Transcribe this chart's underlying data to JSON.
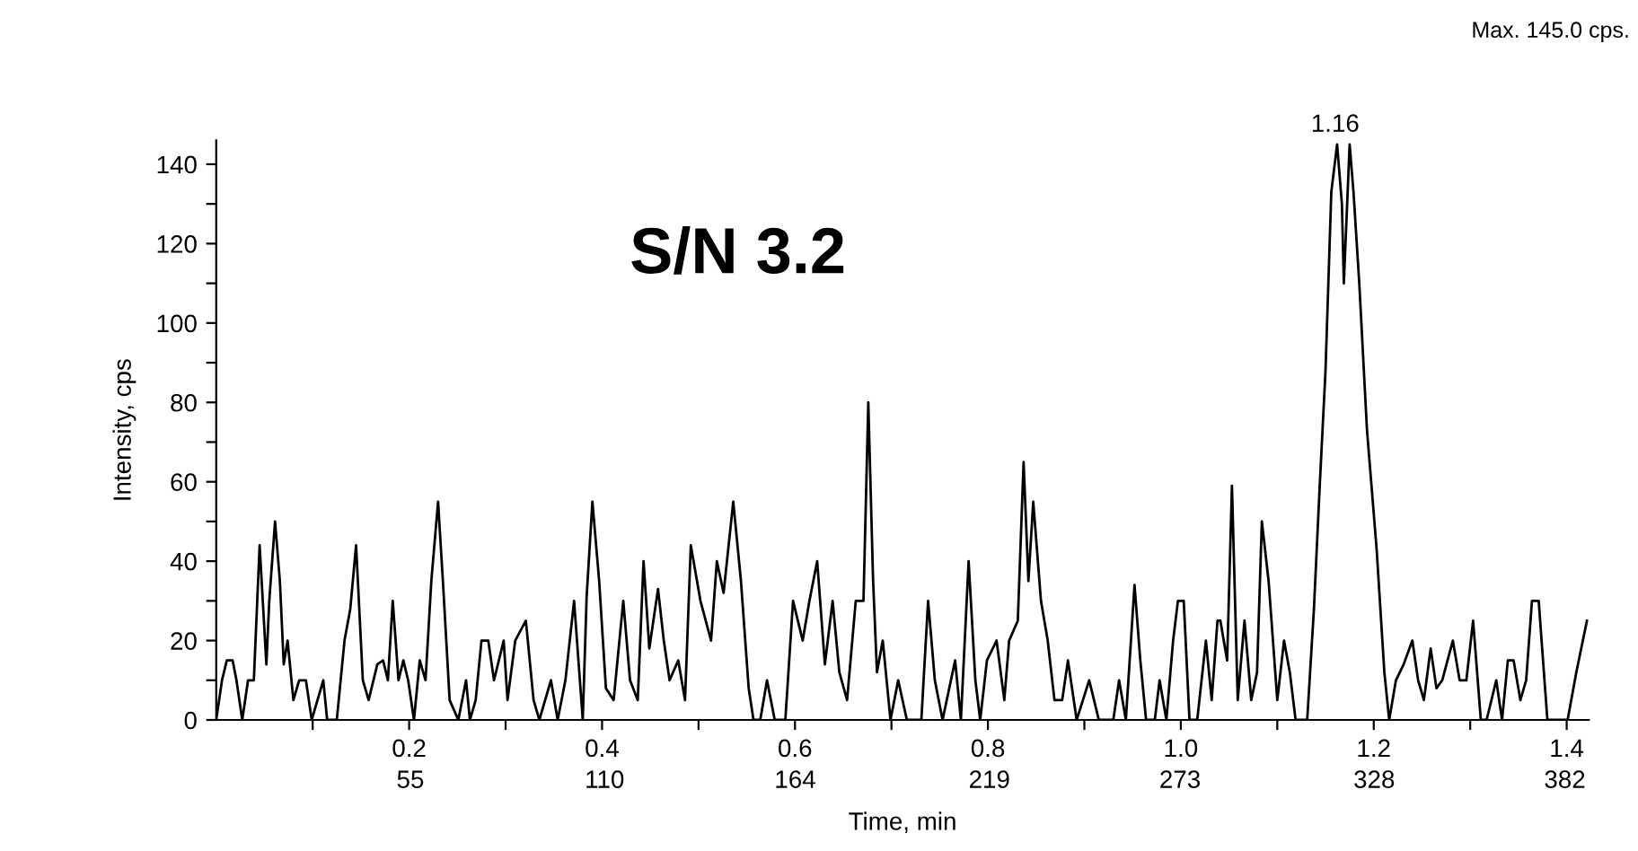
{
  "chart_data": {
    "type": "line",
    "xlabel": "Time, min",
    "ylabel": "Intensity, cps",
    "annotations": [
      "Max. 145.0 cps.",
      "S/N 3.2",
      {
        "text": "1.16",
        "x": 1.16,
        "y": 145
      }
    ],
    "xlim": [
      0,
      1.423
    ],
    "ylim": [
      0,
      146
    ],
    "xticks": [
      {
        "value": 0.1,
        "label": null
      },
      0.2,
      {
        "value": 0.3,
        "label": null
      },
      0.4,
      {
        "value": 0.5,
        "label": null
      },
      0.6,
      {
        "value": 0.7,
        "label": null
      },
      0.8,
      {
        "value": 0.9,
        "label": null
      },
      {
        "value": 1.0,
        "label": "1.0"
      },
      {
        "value": 1.1,
        "label": null
      },
      1.2,
      {
        "value": 1.3,
        "label": null
      },
      1.4
    ],
    "x2lim": [
      0,
      388.8
    ],
    "x2ticks": [
      55,
      110,
      164,
      219,
      273,
      328,
      382
    ],
    "yticks": [
      0,
      {
        "value": 10,
        "label": null
      },
      20,
      {
        "value": 30,
        "label": null
      },
      40,
      {
        "value": 50,
        "label": null
      },
      60,
      {
        "value": 70,
        "label": null
      },
      80,
      {
        "value": 90,
        "label": null
      },
      100,
      {
        "value": 110,
        "label": null
      },
      120,
      {
        "value": 130,
        "label": null
      },
      140
    ],
    "grid": false,
    "legend": false,
    "marker": "none",
    "line_style": "solid",
    "series": [
      {
        "color": "#000000",
        "x": [
          0.0,
          0.006,
          0.011,
          0.017,
          0.021,
          0.027,
          0.033,
          0.039,
          0.045,
          0.052,
          0.055,
          0.061,
          0.066,
          0.07,
          0.074,
          0.08,
          0.086,
          0.093,
          0.099,
          0.111,
          0.115,
          0.125,
          0.133,
          0.139,
          0.145,
          0.152,
          0.158,
          0.167,
          0.173,
          0.178,
          0.183,
          0.189,
          0.194,
          0.199,
          0.205,
          0.211,
          0.217,
          0.223,
          0.23,
          0.235,
          0.242,
          0.251,
          0.259,
          0.263,
          0.269,
          0.275,
          0.282,
          0.288,
          0.298,
          0.302,
          0.31,
          0.321,
          0.329,
          0.335,
          0.347,
          0.354,
          0.362,
          0.371,
          0.38,
          0.384,
          0.39,
          0.397,
          0.404,
          0.412,
          0.422,
          0.429,
          0.437,
          0.443,
          0.449,
          0.458,
          0.464,
          0.47,
          0.479,
          0.486,
          0.492,
          0.502,
          0.513,
          0.519,
          0.526,
          0.536,
          0.544,
          0.552,
          0.557,
          0.564,
          0.571,
          0.579,
          0.59,
          0.598,
          0.608,
          0.615,
          0.623,
          0.631,
          0.639,
          0.646,
          0.654,
          0.663,
          0.671,
          0.676,
          0.681,
          0.685,
          0.691,
          0.699,
          0.707,
          0.716,
          0.731,
          0.738,
          0.745,
          0.753,
          0.766,
          0.772,
          0.78,
          0.787,
          0.792,
          0.799,
          0.809,
          0.817,
          0.822,
          0.831,
          0.837,
          0.842,
          0.847,
          0.855,
          0.862,
          0.869,
          0.877,
          0.883,
          0.892,
          0.905,
          0.915,
          0.93,
          0.936,
          0.943,
          0.952,
          0.958,
          0.964,
          0.973,
          0.978,
          0.985,
          0.992,
          0.997,
          1.003,
          1.009,
          1.017,
          1.026,
          1.032,
          1.038,
          1.041,
          1.048,
          1.053,
          1.059,
          1.066,
          1.073,
          1.079,
          1.084,
          1.091,
          1.1,
          1.107,
          1.113,
          1.119,
          1.131,
          1.138,
          1.144,
          1.15,
          1.156,
          1.162,
          1.167,
          1.169,
          1.175,
          1.179,
          1.185,
          1.193,
          1.203,
          1.211,
          1.216,
          1.223,
          1.231,
          1.24,
          1.246,
          1.252,
          1.259,
          1.265,
          1.271,
          1.282,
          1.289,
          1.296,
          1.303,
          1.311,
          1.317,
          1.327,
          1.333,
          1.339,
          1.345,
          1.352,
          1.358,
          1.364,
          1.371,
          1.38,
          1.401,
          1.41,
          1.421
        ],
        "values": [
          0,
          10,
          15,
          15,
          10,
          0,
          10,
          10,
          44,
          14,
          30,
          50,
          35,
          14,
          20,
          5,
          10,
          10,
          0,
          10,
          0,
          0,
          20,
          28,
          44,
          10,
          5,
          14,
          15,
          10,
          30,
          10,
          15,
          10,
          0,
          15,
          10,
          35,
          55,
          35,
          5,
          0,
          10,
          0,
          5,
          20,
          20,
          10,
          20,
          5,
          20,
          25,
          5,
          0,
          10,
          0,
          10,
          30,
          0,
          31,
          55,
          35,
          8,
          5,
          30,
          10,
          5,
          40,
          18,
          33,
          20,
          10,
          15,
          5,
          44,
          30,
          20,
          40,
          32,
          55,
          35,
          8,
          0,
          0,
          10,
          0,
          0,
          30,
          20,
          30,
          40,
          14,
          30,
          12,
          5,
          30,
          30,
          80,
          35,
          12,
          20,
          0,
          10,
          0,
          0,
          30,
          10,
          0,
          15,
          0,
          40,
          10,
          0,
          15,
          20,
          5,
          20,
          25,
          65,
          35,
          55,
          30,
          20,
          5,
          5,
          15,
          0,
          10,
          0,
          0,
          10,
          0,
          34,
          15,
          0,
          0,
          10,
          0,
          20,
          30,
          30,
          0,
          0,
          20,
          5,
          25,
          25,
          15,
          59,
          5,
          25,
          5,
          12,
          50,
          35,
          5,
          20,
          12,
          0,
          0,
          28,
          59,
          88,
          133,
          145,
          130,
          110,
          145,
          133,
          110,
          73,
          43,
          12,
          0,
          10,
          14,
          20,
          10,
          5,
          18,
          8,
          10,
          20,
          10,
          10,
          25,
          0,
          0,
          10,
          0,
          15,
          15,
          5,
          10,
          30,
          30,
          0,
          0,
          12,
          25
        ]
      }
    ]
  }
}
